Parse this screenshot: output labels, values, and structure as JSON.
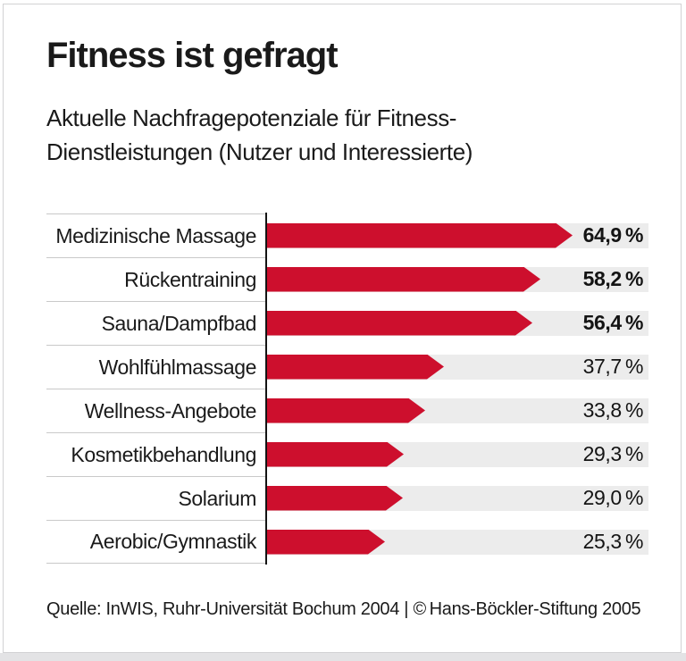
{
  "header": {
    "title": "Fitness ist gefragt",
    "subtitle_line1": "Aktuelle Nachfragepotenziale für Fitness-",
    "subtitle_line2": "Dienstleistungen (Nutzer und Interessierte)"
  },
  "footer": {
    "source": "Quelle: InWIS, Ruhr-Universität Bochum 2004 | © Hans-Böckler-Stiftung 2005"
  },
  "colors": {
    "bar_red": "#cd0f2d",
    "track_gray": "#ececec",
    "axis_black": "#141414",
    "separator_gray": "#c9c9c9"
  },
  "chart_data": {
    "type": "bar",
    "orientation": "horizontal",
    "title": "Fitness ist gefragt",
    "subtitle": "Aktuelle Nachfragepotenziale für Fitness-Dienstleistungen (Nutzer und Interessierte)",
    "categories": [
      "Medizinische Massage",
      "Rückentraining",
      "Sauna/Dampfbad",
      "Wohlfühlmassage",
      "Wellness-Angebote",
      "Kosmetikbehandlung",
      "Solarium",
      "Aerobic/Gymnastik"
    ],
    "values": [
      64.9,
      58.2,
      56.4,
      37.7,
      33.8,
      29.3,
      29.0,
      25.3
    ],
    "value_labels": [
      "64,9 %",
      "58,2 %",
      "56,4 %",
      "37,7 %",
      "33,8 %",
      "29,3 %",
      "29,0 %",
      "25,3 %"
    ],
    "bold_value_labels": [
      true,
      true,
      true,
      false,
      false,
      false,
      false,
      false
    ],
    "unit": "%",
    "xlim": [
      0,
      81
    ],
    "grid": false,
    "legend": "none",
    "source": "Quelle: InWIS, Ruhr-Universität Bochum 2004 | © Hans-Böckler-Stiftung 2005"
  }
}
